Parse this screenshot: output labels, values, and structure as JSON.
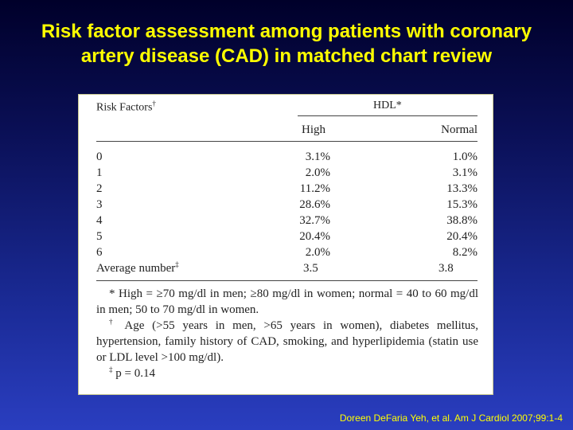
{
  "slide": {
    "title_line1": "Risk factor assessment among patients with coronary",
    "title_line2": "artery disease (CAD) in matched chart review",
    "citation": "Doreen DeFaria Yeh, et al. Am J Cardiol 2007;99:1-4"
  },
  "table": {
    "risk_factors_label": "Risk Factors",
    "risk_factors_mark": "†",
    "group_label": "HDL*",
    "col_high": "High",
    "col_normal": "Normal",
    "rows": [
      {
        "factor": "0",
        "high": "3.1%",
        "normal": "1.0%"
      },
      {
        "factor": "1",
        "high": "2.0%",
        "normal": "3.1%"
      },
      {
        "factor": "2",
        "high": "11.2%",
        "normal": "13.3%"
      },
      {
        "factor": "3",
        "high": "28.6%",
        "normal": "15.3%"
      },
      {
        "factor": "4",
        "high": "32.7%",
        "normal": "38.8%"
      },
      {
        "factor": "5",
        "high": "20.4%",
        "normal": "20.4%"
      },
      {
        "factor": "6",
        "high": "2.0%",
        "normal": "8.2%"
      }
    ],
    "average": {
      "label": "Average number",
      "mark": "‡",
      "high": "3.5",
      "normal": "3.8"
    },
    "footnotes": {
      "star": "* High = ≥70 mg/dl in men; ≥80 mg/dl in women; normal = 40 to 60 mg/dl in men; 50 to 70 mg/dl in women.",
      "dagger_mark": "†",
      "dagger": " Age (>55 years in men, >65 years in women), diabetes mellitus, hypertension, family history of CAD, smoking, and hyperlipidemia (statin use or LDL level >100 mg/dl).",
      "ddagger_mark": "‡",
      "ddagger": " p = 0.14"
    }
  }
}
